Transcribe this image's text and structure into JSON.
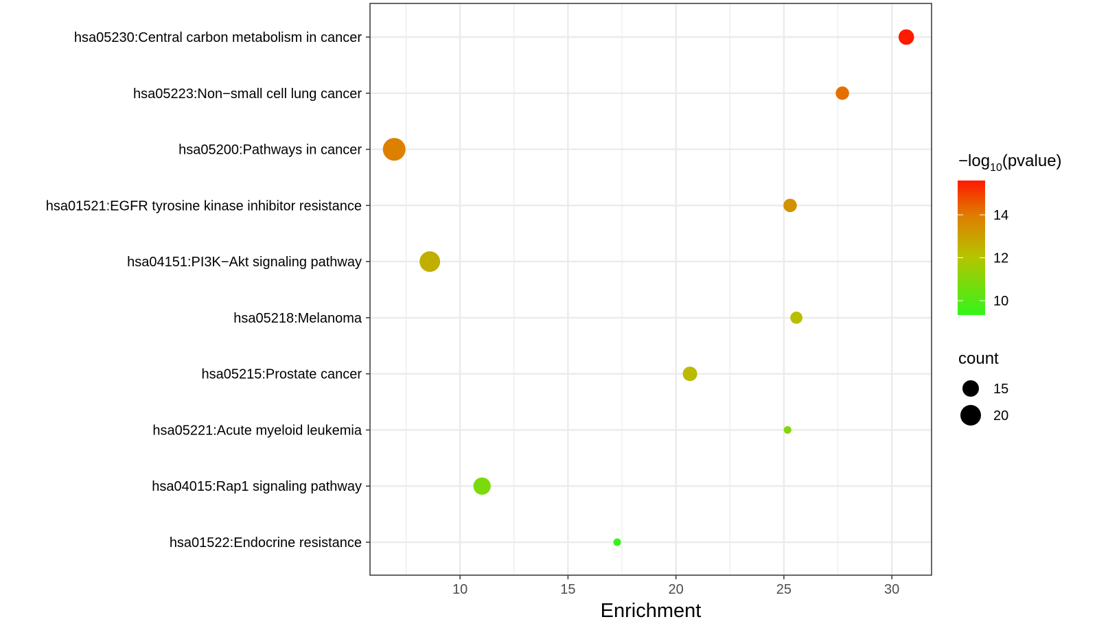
{
  "chart_data": {
    "type": "scatter",
    "title": "",
    "xlabel": "Enrichment",
    "ylabel": "",
    "xlim": [
      5.83,
      31.84
    ],
    "xticks": [
      10,
      15,
      20,
      25,
      30
    ],
    "grid": true,
    "categories": [
      "hsa05230:Central carbon metabolism in cancer",
      "hsa05223:Non−small cell lung cancer",
      "hsa05200:Pathways in cancer",
      "hsa01521:EGFR tyrosine kinase inhibitor resistance",
      "hsa04151:PI3K−Akt signaling pathway",
      "hsa05218:Melanoma",
      "hsa05215:Prostate cancer",
      "hsa05221:Acute myeloid leukemia",
      "hsa04015:Rap1 signaling pathway",
      "hsa01522:Endocrine resistance"
    ],
    "points": [
      {
        "enrichment": 30.67,
        "count": 14,
        "neglog10p": 15.6
      },
      {
        "enrichment": 27.71,
        "count": 12,
        "neglog10p": 14.2
      },
      {
        "enrichment": 6.95,
        "count": 23,
        "neglog10p": 13.9
      },
      {
        "enrichment": 25.29,
        "count": 12,
        "neglog10p": 13.4
      },
      {
        "enrichment": 8.6,
        "count": 20,
        "neglog10p": 12.6
      },
      {
        "enrichment": 25.58,
        "count": 11,
        "neglog10p": 12.2
      },
      {
        "enrichment": 20.65,
        "count": 13,
        "neglog10p": 12.3
      },
      {
        "enrichment": 25.17,
        "count": 8,
        "neglog10p": 11.0
      },
      {
        "enrichment": 11.02,
        "count": 16,
        "neglog10p": 10.8
      },
      {
        "enrichment": 17.28,
        "count": 8,
        "neglog10p": 9.4
      }
    ],
    "color_legend": {
      "title_parts": [
        "−log",
        "10",
        "(pvalue)"
      ],
      "range": [
        9.33,
        15.6
      ],
      "ticks": [
        10,
        12,
        14
      ],
      "tick_labels": [
        "10",
        "12",
        "14"
      ],
      "low_color": "#33f51a",
      "high_color": "#ff1a00"
    },
    "size_legend": {
      "title": "count",
      "values": [
        15,
        20
      ],
      "labels": [
        "15",
        "20"
      ]
    },
    "legend_position": "right"
  }
}
